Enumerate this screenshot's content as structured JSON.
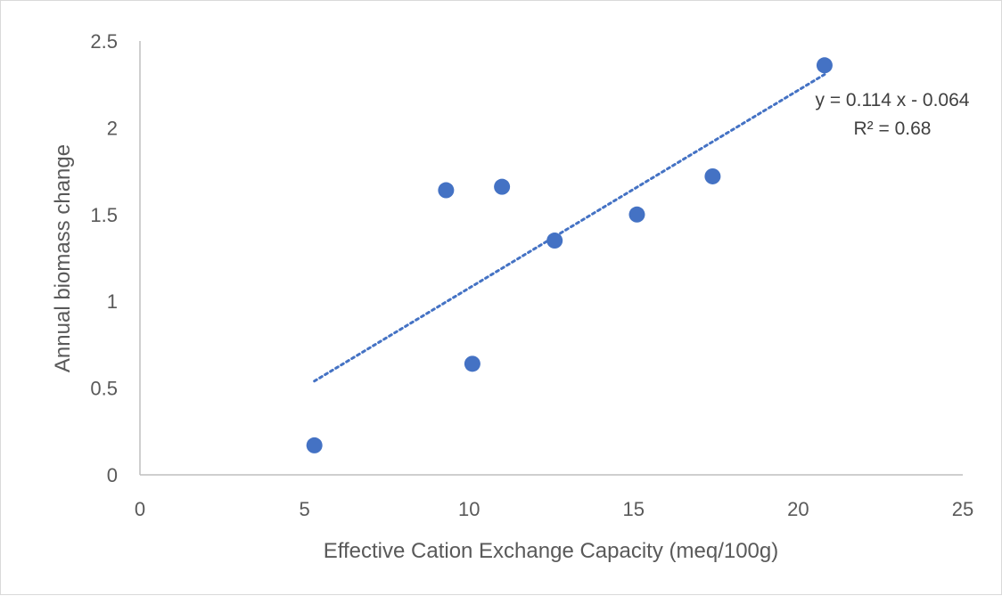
{
  "chart_data": {
    "type": "scatter",
    "title": "",
    "xlabel": "Effective Cation Exchange Capacity (meq/100g)",
    "ylabel": "Annual biomass change",
    "xlim": [
      0,
      25
    ],
    "ylim": [
      0,
      2.5
    ],
    "x_ticks": [
      "0",
      "5",
      "10",
      "15",
      "20",
      "25"
    ],
    "y_ticks": [
      "0",
      "0.5",
      "1",
      "1.5",
      "2",
      "2.5"
    ],
    "grid": false,
    "legend": "none",
    "series": [
      {
        "x": [
          5.3,
          9.3,
          10.1,
          11.0,
          12.6,
          15.1,
          17.4,
          20.8
        ],
        "y": [
          0.17,
          1.64,
          0.64,
          1.66,
          1.35,
          1.5,
          1.72,
          2.36
        ]
      }
    ],
    "trendline": {
      "type": "linear",
      "slope": 0.114,
      "intercept": -0.064,
      "x_range": [
        5.3,
        20.8
      ],
      "equation_label": "y = 0.114 x - 0.064",
      "r2_label": "R² = 0.68"
    },
    "colors": {
      "points": "#4472C4",
      "trendline": "#4472C4",
      "axis": "#bfbfbf",
      "text": "#595959"
    }
  }
}
